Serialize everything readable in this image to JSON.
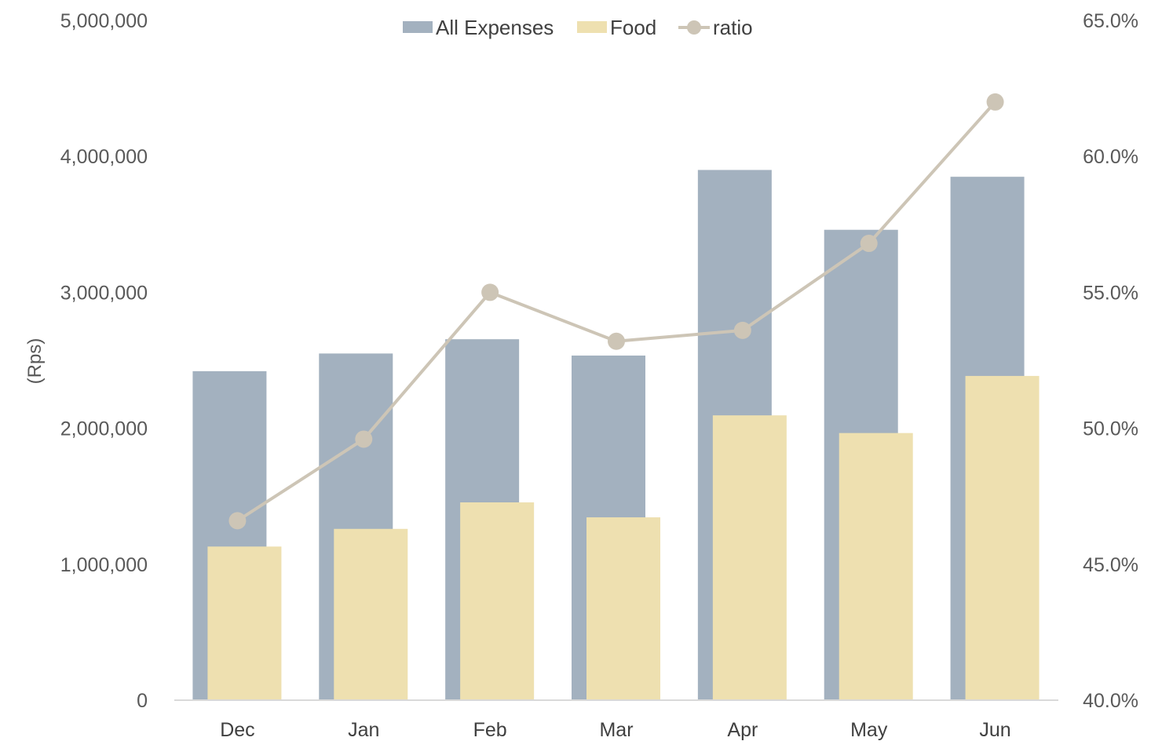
{
  "chart_data": {
    "type": "bar",
    "categories": [
      "Dec",
      "Jan",
      "Feb",
      "Mar",
      "Apr",
      "May",
      "Jun"
    ],
    "series": [
      {
        "name": "All Expenses",
        "type": "bar",
        "axis": "left",
        "color": "#a3b1bf",
        "values": [
          2420000,
          2550000,
          2655000,
          2535000,
          3900000,
          3460000,
          3850000
        ]
      },
      {
        "name": "Food",
        "type": "bar",
        "axis": "left",
        "color": "#eee0b0",
        "values": [
          1130000,
          1260000,
          1455000,
          1345000,
          2095000,
          1965000,
          2385000
        ]
      },
      {
        "name": "ratio",
        "type": "line",
        "axis": "right",
        "color": "#cdc5b6",
        "values": [
          0.466,
          0.496,
          0.55,
          0.532,
          0.536,
          0.568,
          0.62
        ]
      }
    ],
    "ylabel": "(Rps)",
    "ylim": [
      0,
      5000000
    ],
    "y2lim": [
      0.4,
      0.65
    ],
    "yticks": [
      "0",
      "1,000,000",
      "2,000,000",
      "3,000,000",
      "4,000,000",
      "5,000,000"
    ],
    "y2ticks": [
      "40.0%",
      "45.0%",
      "50.0%",
      "55.0%",
      "60.0%",
      "65.0%"
    ],
    "legend": "top-center",
    "grid": false
  }
}
